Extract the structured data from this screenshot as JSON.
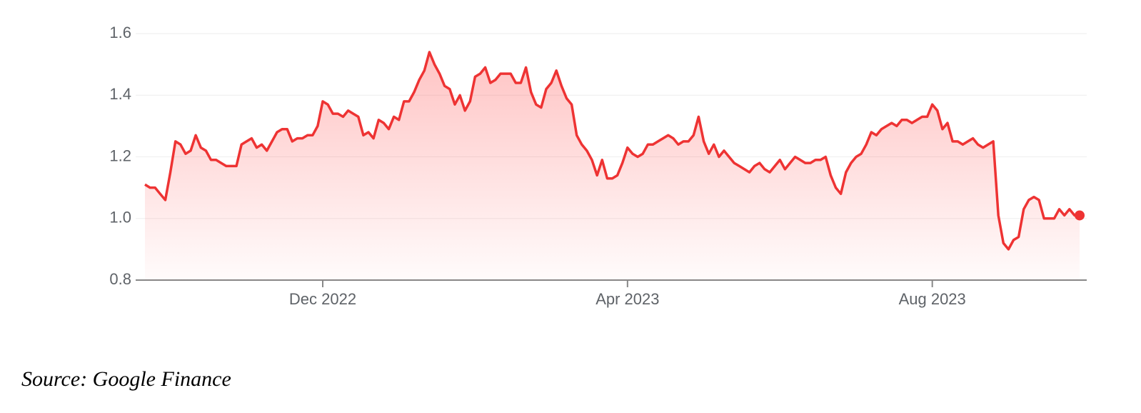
{
  "chart_data": {
    "type": "line",
    "categories": [
      null,
      null,
      null,
      null,
      null,
      null,
      null,
      null,
      null,
      null,
      null,
      null,
      null,
      null,
      null,
      null,
      null,
      null,
      null,
      null,
      null,
      null,
      null,
      null,
      null,
      null,
      null,
      null,
      null,
      null,
      null,
      null,
      null,
      null,
      null,
      "Dec 2022",
      null,
      null,
      null,
      null,
      null,
      null,
      null,
      null,
      null,
      null,
      null,
      null,
      null,
      null,
      null,
      null,
      null,
      null,
      null,
      null,
      null,
      null,
      null,
      null,
      null,
      null,
      null,
      null,
      null,
      null,
      null,
      null,
      null,
      null,
      null,
      null,
      null,
      null,
      null,
      null,
      null,
      null,
      null,
      null,
      null,
      null,
      null,
      null,
      null,
      null,
      null,
      null,
      null,
      null,
      null,
      null,
      null,
      null,
      null,
      "Apr 2023",
      null,
      null,
      null,
      null,
      null,
      null,
      null,
      null,
      null,
      null,
      null,
      null,
      null,
      null,
      null,
      null,
      null,
      null,
      null,
      null,
      null,
      null,
      null,
      null,
      null,
      null,
      null,
      null,
      null,
      null,
      null,
      null,
      null,
      null,
      null,
      null,
      null,
      null,
      null,
      null,
      null,
      null,
      null,
      null,
      null,
      null,
      null,
      null,
      null,
      null,
      null,
      null,
      null,
      null,
      null,
      null,
      null,
      null,
      null,
      "Aug 2023",
      null,
      null,
      null,
      null,
      null,
      null,
      null,
      null,
      null,
      null,
      null,
      null,
      null,
      null,
      null,
      null,
      null,
      null,
      null,
      null,
      null,
      null,
      null,
      null,
      null,
      null,
      null,
      null,
      null
    ],
    "values": [
      1.11,
      1.1,
      1.1,
      1.08,
      1.06,
      1.15,
      1.25,
      1.24,
      1.21,
      1.22,
      1.27,
      1.23,
      1.22,
      1.19,
      1.19,
      1.18,
      1.17,
      1.17,
      1.17,
      1.24,
      1.25,
      1.26,
      1.23,
      1.24,
      1.22,
      1.25,
      1.28,
      1.29,
      1.29,
      1.25,
      1.26,
      1.26,
      1.27,
      1.27,
      1.3,
      1.38,
      1.37,
      1.34,
      1.34,
      1.33,
      1.35,
      1.34,
      1.33,
      1.27,
      1.28,
      1.26,
      1.32,
      1.31,
      1.29,
      1.33,
      1.32,
      1.38,
      1.38,
      1.41,
      1.45,
      1.48,
      1.54,
      1.5,
      1.47,
      1.43,
      1.42,
      1.37,
      1.4,
      1.35,
      1.38,
      1.46,
      1.47,
      1.49,
      1.44,
      1.45,
      1.47,
      1.47,
      1.47,
      1.44,
      1.44,
      1.49,
      1.41,
      1.37,
      1.36,
      1.42,
      1.44,
      1.48,
      1.43,
      1.39,
      1.37,
      1.27,
      1.24,
      1.22,
      1.19,
      1.14,
      1.19,
      1.13,
      1.13,
      1.14,
      1.18,
      1.23,
      1.21,
      1.2,
      1.21,
      1.24,
      1.24,
      1.25,
      1.26,
      1.27,
      1.26,
      1.24,
      1.25,
      1.25,
      1.27,
      1.33,
      1.25,
      1.21,
      1.24,
      1.2,
      1.22,
      1.2,
      1.18,
      1.17,
      1.16,
      1.15,
      1.17,
      1.18,
      1.16,
      1.15,
      1.17,
      1.19,
      1.16,
      1.18,
      1.2,
      1.19,
      1.18,
      1.18,
      1.19,
      1.19,
      1.2,
      1.14,
      1.1,
      1.08,
      1.15,
      1.18,
      1.2,
      1.21,
      1.24,
      1.28,
      1.27,
      1.29,
      1.3,
      1.31,
      1.3,
      1.32,
      1.32,
      1.31,
      1.32,
      1.33,
      1.33,
      1.37,
      1.35,
      1.29,
      1.31,
      1.25,
      1.25,
      1.24,
      1.25,
      1.26,
      1.24,
      1.23,
      1.24,
      1.25,
      1.01,
      0.92,
      0.9,
      0.93,
      0.94,
      1.03,
      1.06,
      1.07,
      1.06,
      1.0,
      1.0,
      1.0,
      1.03,
      1.01,
      1.03,
      1.01,
      1.01
    ],
    "color": "#ee3333",
    "ylim": [
      0.8,
      1.6
    ],
    "yticks": [
      0.8,
      {
        "value": 1,
        "label": "1.0"
      },
      1.2,
      1.4,
      1.6
    ],
    "grid": true
  },
  "source": "Source: Google Finance"
}
